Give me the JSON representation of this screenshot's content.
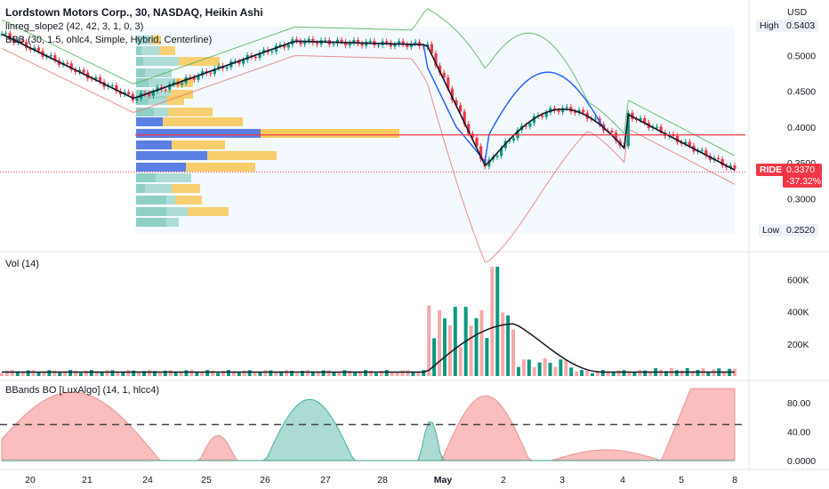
{
  "header": {
    "symbol_title": "Lordstown Motors Corp., 30, NASDAQ, Heikin Ashi",
    "indicator1": "linreg_slope2 (42, 42, 3, 1, 0, 3)",
    "indicator2": "BBB (30, 1.5, ohlc4, Simple, Hybrid, Centerline)"
  },
  "price_axis": {
    "currency": "USD",
    "ticks": [
      "0.5000",
      "0.4500",
      "0.4000",
      "0.3500",
      "0.3000"
    ],
    "high_label": "High",
    "high_value": "0.5403",
    "low_label": "Low",
    "low_value": "0.2520",
    "ticker_tag": "RIDE",
    "last_price": "0.3370",
    "change_pct": "-37.32%",
    "ref_line_price": 0.389
  },
  "volume_pane": {
    "label": "Vol (14)",
    "ticks": [
      "600K",
      "400K",
      "200K"
    ]
  },
  "osc_pane": {
    "label": "BBands BO [LuxAlgo] (14, 1, hlcc4)",
    "ticks": [
      "80.00",
      "40.00",
      "0.0000"
    ]
  },
  "time_axis": {
    "labels": [
      "20",
      "21",
      "24",
      "25",
      "26",
      "27",
      "28",
      "May",
      "2",
      "3",
      "4",
      "5",
      "8"
    ]
  },
  "colors": {
    "up": "#089981",
    "down": "#f23645",
    "vol_up": "#089981",
    "vol_down": "#f7a9a7",
    "basis": "#131722",
    "fast_ma": "#2962ff",
    "ref_line": "#f23645",
    "profile_blue": "#5b7fe3",
    "profile_yellow": "#f7c95b",
    "profile_teal": "#8fd0c4"
  },
  "chart_data": {
    "type": "candlestick",
    "x": [
      "20",
      "21",
      "24",
      "25",
      "26",
      "27",
      "28",
      "May",
      "2",
      "3",
      "4",
      "5",
      "8"
    ],
    "price_range": [
      0.252,
      0.5403
    ],
    "last_price": 0.337,
    "volume_ticks": [
      200000,
      400000,
      600000
    ],
    "volume_peak": 680000,
    "oscillator_ticks": [
      0,
      40,
      80
    ]
  }
}
